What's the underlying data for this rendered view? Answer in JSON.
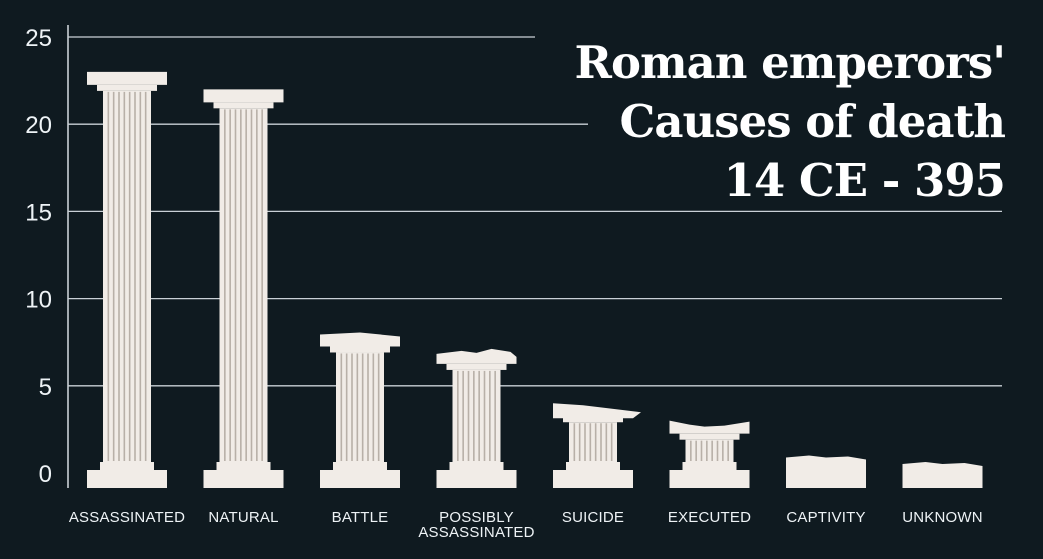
{
  "chart_data": {
    "type": "bar",
    "title_lines": [
      "Roman emperors'",
      "Causes of death",
      "14 CE - 395"
    ],
    "categories": [
      [
        "ASSASSINATED"
      ],
      [
        "NATURAL"
      ],
      [
        "BATTLE"
      ],
      [
        "POSSIBLY",
        "ASSASSINATED"
      ],
      [
        "SUICIDE"
      ],
      [
        "EXECUTED"
      ],
      [
        "CAPTIVITY"
      ],
      [
        "UNKNOWN"
      ]
    ],
    "values": [
      23,
      22,
      8,
      7,
      4,
      3,
      1,
      0.5
    ],
    "ylim": [
      0,
      25
    ],
    "yticks": [
      "0",
      "5",
      "10",
      "15",
      "20",
      "25"
    ],
    "grid": true,
    "colors": {
      "background": "#0f1a20",
      "text": "#eef3f6",
      "column": "#f1ece7",
      "flutes": "#b8b0a8",
      "grid": "#c9d0d6"
    }
  }
}
